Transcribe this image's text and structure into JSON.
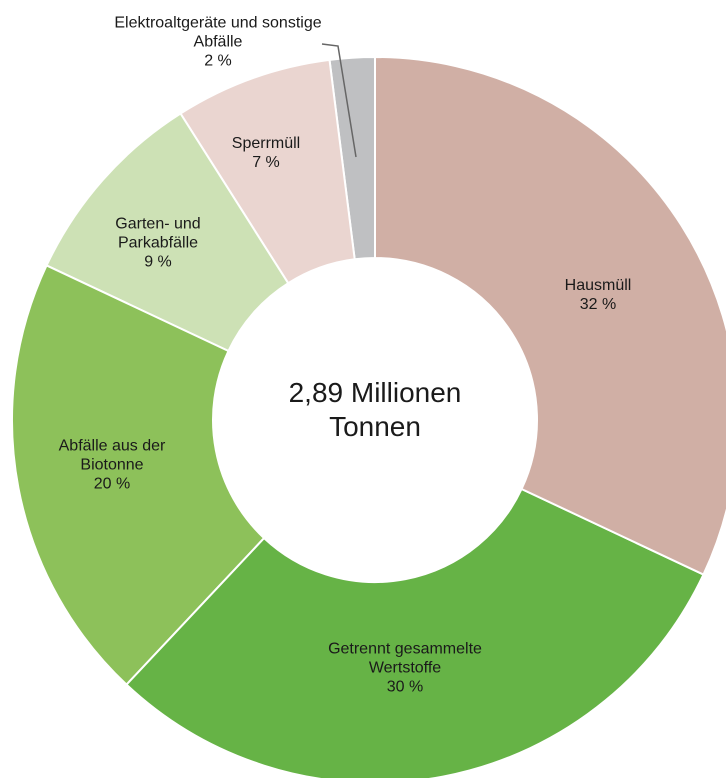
{
  "chart_data": {
    "type": "donut",
    "center_label": "2,89 Millionen Tonnen",
    "categories": [
      "Hausmüll",
      "Getrennt gesammelte Wertstoffe",
      "Abfälle aus der Biotonne",
      "Garten- und Parkabfälle",
      "Sperrmüll",
      "Elektroaltgeräte und sonstige Abfälle"
    ],
    "values": [
      32,
      30,
      20,
      9,
      7,
      2
    ],
    "value_labels": [
      "32 %",
      "30 %",
      "20 %",
      "9 %",
      "7 %",
      "2 %"
    ],
    "colors": [
      "#d0afa5",
      "#66b346",
      "#8dc15a",
      "#cde1b5",
      "#ead5d0",
      "#bfc0c2"
    ]
  }
}
